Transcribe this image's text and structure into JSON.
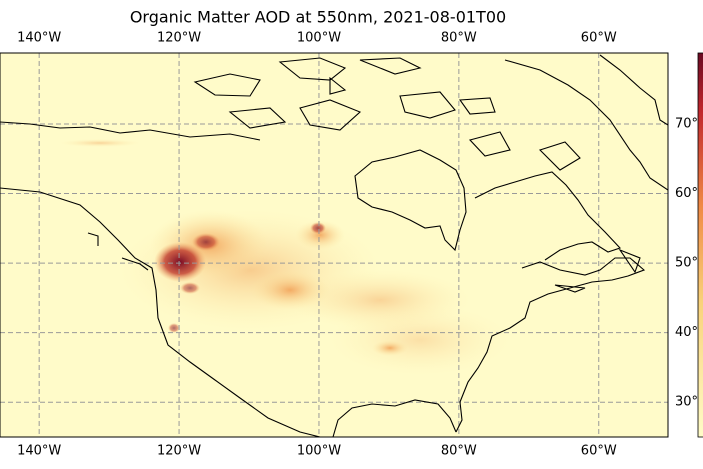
{
  "chart_data": {
    "type": "map",
    "title": "Organic Matter AOD at 550nm, 2021-08-01T00",
    "xlim": [
      -145.6,
      -50.1
    ],
    "ylim": [
      25,
      80.2
    ],
    "xticks": [
      {
        "value": -140,
        "label": "140°W"
      },
      {
        "value": -120,
        "label": "120°W"
      },
      {
        "value": -100,
        "label": "100°W"
      },
      {
        "value": -80,
        "label": "80°W"
      },
      {
        "value": -60,
        "label": "60°W"
      }
    ],
    "yticks": [
      {
        "value": 30,
        "label": "30°"
      },
      {
        "value": 40,
        "label": "40°"
      },
      {
        "value": 50,
        "label": "50°"
      },
      {
        "value": 60,
        "label": "60°"
      },
      {
        "value": 70,
        "label": "70°"
      }
    ],
    "grid": true
  }
}
